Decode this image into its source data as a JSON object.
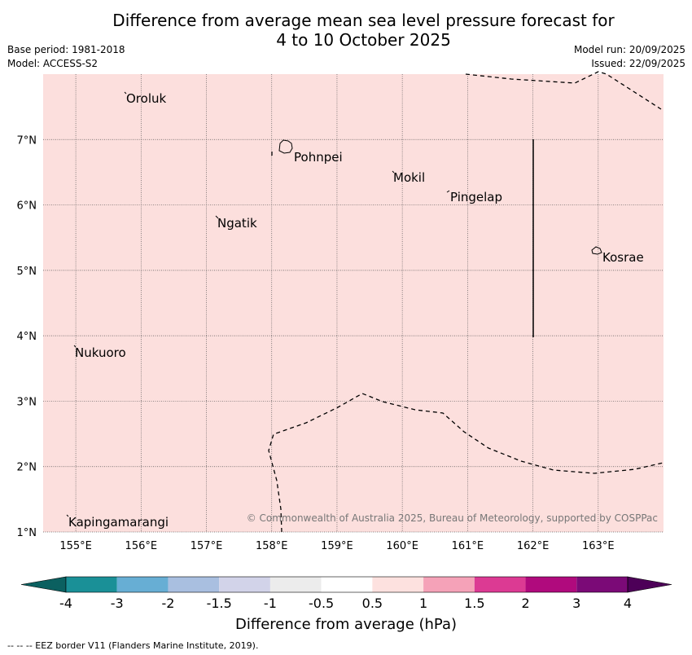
{
  "title": {
    "line1": "Difference from average mean sea level pressure forecast for",
    "line2": "4 to 10 October 2025"
  },
  "meta": {
    "base_period": "Base period: 1981-2018",
    "model": "Model: ACCESS-S2",
    "model_run": "Model run: 20/09/2025",
    "issued": "Issued: 22/09/2025"
  },
  "map": {
    "lon_labels": [
      "155°E",
      "156°E",
      "157°E",
      "158°E",
      "159°E",
      "160°E",
      "161°E",
      "162°E",
      "163°E"
    ],
    "lat_labels": [
      "1°N",
      "2°N",
      "3°N",
      "4°N",
      "5°N",
      "6°N",
      "7°N"
    ],
    "extent": {
      "lon_min": 154.5,
      "lon_max": 164.0,
      "lat_min": 1.0,
      "lat_max": 8.0
    },
    "fill_color": "#fcdfdd",
    "places": [
      {
        "name": "Oroluk",
        "lon": 155.7,
        "lat": 7.6
      },
      {
        "name": "Pohnpei",
        "lon": 158.2,
        "lat": 6.85
      },
      {
        "name": "Mokil",
        "lon": 159.8,
        "lat": 6.7
      },
      {
        "name": "Pingelap",
        "lon": 160.7,
        "lat": 6.2
      },
      {
        "name": "Ngatik",
        "lon": 157.1,
        "lat": 5.8
      },
      {
        "name": "Kosrae",
        "lon": 163.0,
        "lat": 5.3
      },
      {
        "name": "Nukuoro",
        "lon": 155.0,
        "lat": 3.85
      },
      {
        "name": "Kapingamarangi",
        "lon": 154.9,
        "lat": 1.25
      }
    ],
    "copyright": "© Commonwealth of Australia 2025, Bureau of Meteorology, supported by COSPPac"
  },
  "colorbar": {
    "labels": [
      "-4",
      "-3",
      "-2",
      "-1.5",
      "-1",
      "-0.5",
      "0.5",
      "1",
      "1.5",
      "2",
      "3",
      "4"
    ],
    "colors": [
      "#1a9097",
      "#67aed4",
      "#a9bfe0",
      "#d2d3e9",
      "#ececec",
      "#ffffff",
      "#fde1df",
      "#f5a2b8",
      "#dc3a93",
      "#b00a7d",
      "#7b0a77"
    ],
    "low_extend_color": "#0b6060",
    "high_extend_color": "#4d0058",
    "title": "Difference from average (hPa)"
  },
  "legend_note": "--  --  -- EEZ border V11 (Flanders Marine Institute, 2019)."
}
